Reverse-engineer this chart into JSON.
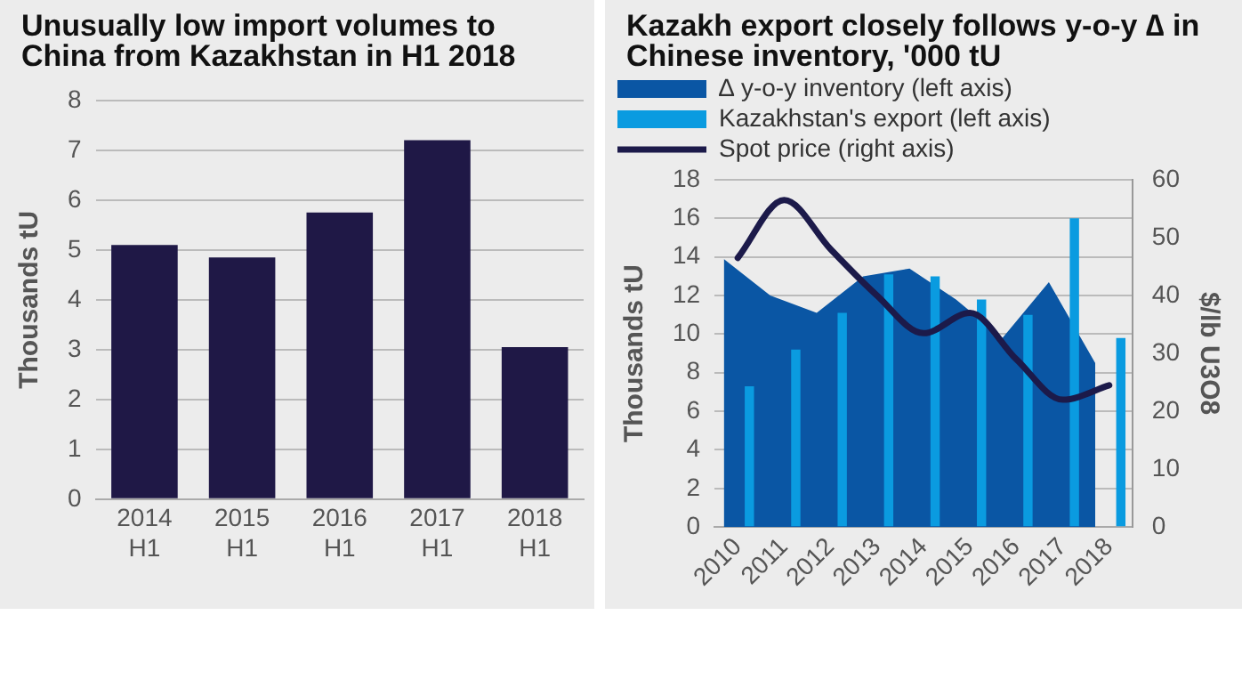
{
  "chart_data": [
    {
      "type": "bar",
      "title": "Unusually low import volumes to China from Kazakhstan in H1 2018",
      "ylabel": "Thousands tU",
      "categories": [
        "2014 H1",
        "2015 H1",
        "2016 H1",
        "2017 H1",
        "2018 H1"
      ],
      "values": [
        5.1,
        4.85,
        5.75,
        7.2,
        3.05
      ],
      "color": "#1f1846",
      "ylim": [
        0,
        8
      ],
      "yticks": [
        0,
        1,
        2,
        3,
        4,
        5,
        6,
        7,
        8
      ],
      "grid": "y"
    },
    {
      "type": "bar",
      "title": "Kazakh export closely follows y-o-y ∆ in Chinese inventory, '000 tU",
      "ylabel": "Thousands tU",
      "y2label": "$/lb U3O8",
      "categories": [
        "2010",
        "2011",
        "2012",
        "2013",
        "2014",
        "2015",
        "2016",
        "2017",
        "2018"
      ],
      "series": [
        {
          "name": "∆ y-o-y inventory (left axis)",
          "type": "area",
          "color": "#0a56a4",
          "values": [
            13.9,
            12.0,
            11.1,
            13.0,
            13.4,
            11.8,
            9.8,
            12.7,
            8.5
          ]
        },
        {
          "name": "Kazakhstan's export (left axis)",
          "type": "bar",
          "color": "#0a9be0",
          "values": [
            7.3,
            9.2,
            11.1,
            13.1,
            13.0,
            11.8,
            11.0,
            16.0,
            9.8
          ]
        },
        {
          "name": "Spot price (right axis)",
          "type": "line",
          "axis": "y2",
          "color": "#1c1a4a",
          "values": [
            46.5,
            56.5,
            48,
            40,
            33.5,
            37,
            29,
            22,
            24.5
          ]
        }
      ],
      "ylim": [
        0,
        18
      ],
      "yticks": [
        0,
        2,
        4,
        6,
        8,
        10,
        12,
        14,
        16,
        18
      ],
      "y2lim": [
        0,
        60
      ],
      "y2ticks": [
        0,
        10,
        20,
        30,
        40,
        50,
        60
      ],
      "grid": "y",
      "legend": "top left"
    }
  ]
}
